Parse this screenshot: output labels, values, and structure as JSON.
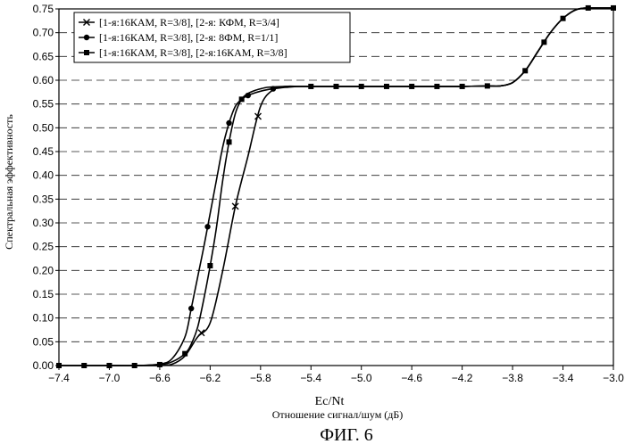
{
  "figure_caption": "ФИГ. 6",
  "chart_data": {
    "type": "line",
    "xlabel": "Ec/Nt",
    "xlabel_sub": "Отношение сигнал/шум (дБ)",
    "ylabel": "Спектральная эффективность",
    "xlim": [
      -7.4,
      -3.0
    ],
    "ylim": [
      0.0,
      0.75
    ],
    "xticks": [
      -7.4,
      -7.0,
      -6.6,
      -6.2,
      -5.8,
      -5.4,
      -5.0,
      -4.6,
      -4.2,
      -3.8,
      -3.4,
      -3.0
    ],
    "xtick_labels": [
      "−7.4",
      "−7.0",
      "−6.6",
      "−6.2",
      "−5.8",
      "−5.4",
      "−5.0",
      "−4.6",
      "−4.2",
      "−3.8",
      "−3.4",
      "−3.0"
    ],
    "yticks": [
      0.0,
      0.05,
      0.1,
      0.15,
      0.2,
      0.25,
      0.3,
      0.35,
      0.4,
      0.45,
      0.5,
      0.55,
      0.6,
      0.65,
      0.7,
      0.75
    ],
    "ytick_labels": [
      "0.00",
      "0.05",
      "0.10",
      "0.15",
      "0.20",
      "0.25",
      "0.30",
      "0.35",
      "0.40",
      "0.45",
      "0.50",
      "0.55",
      "0.60",
      "0.65",
      "0.70",
      "0.75"
    ],
    "grid": "horizontal dashed",
    "legend_position": "top-left",
    "series": [
      {
        "name": "[1-я:16КАМ, R=3/8],  [2-я: КФМ, R=3/4]",
        "marker": "x",
        "x": [
          -7.4,
          -7.2,
          -7.0,
          -6.8,
          -6.6,
          -6.5,
          -6.4,
          -6.3,
          -6.2,
          -6.1,
          -6.0,
          -5.9,
          -5.8,
          -5.7,
          -5.6,
          -5.5,
          -5.4,
          -5.2,
          -5.0,
          -4.8,
          -4.6,
          -4.4,
          -4.2,
          -4.0,
          -3.9,
          -3.8,
          -3.7,
          -3.6,
          -3.5,
          -3.4,
          -3.3,
          -3.2,
          -3.1,
          -3.0
        ],
        "y": [
          0.0,
          0.0,
          0.0,
          0.0,
          0.0,
          0.003,
          0.02,
          0.06,
          0.09,
          0.2,
          0.335,
          0.44,
          0.545,
          0.58,
          0.587,
          0.587,
          0.587,
          0.587,
          0.587,
          0.587,
          0.587,
          0.587,
          0.587,
          0.588,
          0.588,
          0.595,
          0.62,
          0.66,
          0.7,
          0.73,
          0.748,
          0.752,
          0.752,
          0.752
        ],
        "marker_x": [
          -6.27,
          -6.0,
          -5.82
        ]
      },
      {
        "name": "[1-я:16КАМ, R=3/8],  [2-я: 8ФМ, R=1/1]",
        "marker": "circle",
        "x": [
          -7.4,
          -7.2,
          -7.0,
          -6.8,
          -6.6,
          -6.5,
          -6.4,
          -6.35,
          -6.3,
          -6.25,
          -6.2,
          -6.15,
          -6.1,
          -6.05,
          -6.0,
          -5.95,
          -5.9,
          -5.85,
          -5.8,
          -5.75,
          -5.7,
          -5.6,
          -5.5,
          -5.4,
          -5.2,
          -5.0,
          -4.8,
          -4.6,
          -4.4,
          -4.2,
          -4.0,
          -3.9,
          -3.8,
          -3.7,
          -3.6,
          -3.5,
          -3.4,
          -3.3,
          -3.2,
          -3.1,
          -3.0
        ],
        "y": [
          0.0,
          0.0,
          0.0,
          0.0,
          0.003,
          0.015,
          0.06,
          0.12,
          0.185,
          0.25,
          0.32,
          0.39,
          0.46,
          0.51,
          0.545,
          0.56,
          0.568,
          0.573,
          0.577,
          0.58,
          0.582,
          0.585,
          0.587,
          0.587,
          0.587,
          0.587,
          0.587,
          0.587,
          0.587,
          0.587,
          0.588,
          0.588,
          0.595,
          0.62,
          0.66,
          0.7,
          0.73,
          0.748,
          0.752,
          0.752,
          0.752
        ],
        "marker_x": [
          -6.35,
          -6.22,
          -6.05,
          -5.9,
          -5.7
        ]
      },
      {
        "name": "[1-я:16КАМ, R=3/8],  [2-я:16КАМ, R=3/8]",
        "marker": "square",
        "x": [
          -7.4,
          -7.2,
          -7.0,
          -6.8,
          -6.6,
          -6.5,
          -6.4,
          -6.35,
          -6.3,
          -6.25,
          -6.2,
          -6.15,
          -6.1,
          -6.05,
          -6.0,
          -5.95,
          -5.9,
          -5.85,
          -5.8,
          -5.75,
          -5.7,
          -5.6,
          -5.5,
          -5.4,
          -5.2,
          -5.0,
          -4.8,
          -4.6,
          -4.4,
          -4.2,
          -4.0,
          -3.9,
          -3.8,
          -3.7,
          -3.6,
          -3.5,
          -3.4,
          -3.3,
          -3.2,
          -3.1,
          -3.0
        ],
        "y": [
          0.0,
          0.0,
          0.0,
          0.0,
          0.002,
          0.008,
          0.025,
          0.045,
          0.08,
          0.14,
          0.21,
          0.29,
          0.39,
          0.47,
          0.53,
          0.56,
          0.572,
          0.578,
          0.582,
          0.585,
          0.586,
          0.587,
          0.587,
          0.587,
          0.587,
          0.587,
          0.587,
          0.587,
          0.587,
          0.587,
          0.588,
          0.588,
          0.595,
          0.62,
          0.66,
          0.7,
          0.73,
          0.748,
          0.752,
          0.752,
          0.752
        ],
        "marker_x": [
          -7.4,
          -7.2,
          -7.0,
          -6.8,
          -6.6,
          -6.4,
          -6.2,
          -6.05,
          -5.95,
          -5.4,
          -5.2,
          -5.0,
          -4.8,
          -4.6,
          -4.4,
          -4.2,
          -4.0,
          -3.7,
          -3.55,
          -3.4,
          -3.2,
          -3.0
        ]
      }
    ]
  }
}
